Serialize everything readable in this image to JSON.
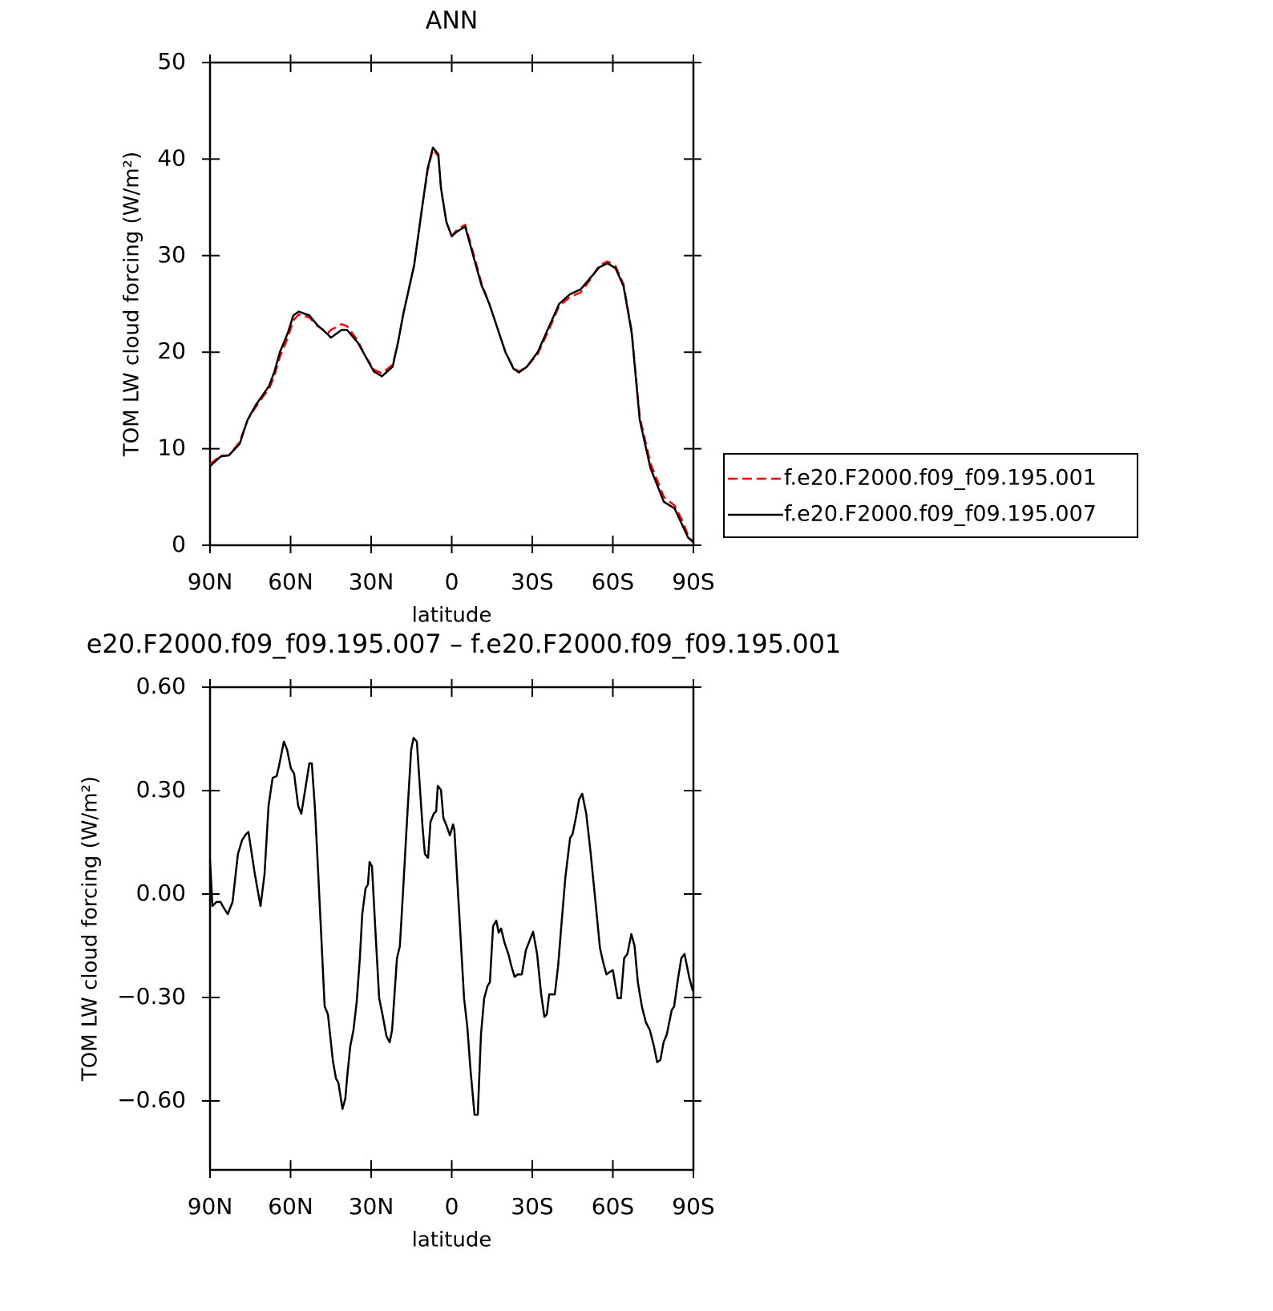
{
  "chart_data": [
    {
      "type": "line",
      "title": "ANN",
      "xlabel": "latitude",
      "ylabel": "TOM LW cloud forcing (W/m²)",
      "x": [
        90,
        86,
        83,
        79,
        76,
        73,
        70,
        68,
        66,
        64,
        61,
        59,
        57,
        53,
        50,
        46,
        45,
        41,
        39,
        35,
        32,
        29,
        26,
        22,
        20,
        18,
        14,
        11,
        9,
        7,
        5,
        4,
        2,
        0,
        -2,
        -5,
        -8,
        -11,
        -14,
        -17,
        -20,
        -23,
        -25,
        -28,
        -32,
        -36,
        -40,
        -44,
        -48,
        -51,
        -55,
        -58,
        -61,
        -64,
        -67,
        -70,
        -74,
        -79,
        -83,
        -86,
        -88,
        -90
      ],
      "series": [
        {
          "name": "f.e20.F2000.f09_f09.195.001",
          "color": "#ff0000",
          "linestyle": "dashed",
          "values": [
            8.4,
            9.3,
            9.3,
            10.7,
            13,
            14.3,
            15.5,
            16.2,
            17.6,
            19.5,
            21.5,
            23.3,
            23.9,
            23.6,
            22.7,
            22,
            22.3,
            22.9,
            22.7,
            21.2,
            19.5,
            18.2,
            17.8,
            18.7,
            21,
            24,
            29,
            35,
            38.8,
            41,
            40.3,
            37,
            33.5,
            32,
            32.7,
            33.2,
            30.3,
            27.2,
            25,
            22.5,
            20,
            18.4,
            18,
            18.5,
            19.8,
            22.2,
            24.8,
            25.7,
            26.2,
            27.3,
            29,
            29.4,
            28.9,
            27,
            22.2,
            13.3,
            8.5,
            5,
            4.1,
            2.5,
            1,
            0.3
          ]
        },
        {
          "name": "f.e20.F2000.f09_f09.195.007",
          "color": "#000000",
          "linestyle": "solid",
          "values": [
            8.2,
            9.2,
            9.3,
            10.5,
            13,
            14.5,
            15.7,
            16.5,
            18,
            20,
            22,
            23.8,
            24.2,
            23.8,
            22.8,
            21.8,
            21.5,
            22.3,
            22.3,
            21,
            19.5,
            18,
            17.5,
            18.5,
            21,
            24,
            29,
            35,
            39,
            41.2,
            40.5,
            37,
            33.5,
            32,
            32.5,
            33,
            30,
            27,
            25,
            22.5,
            20,
            18.3,
            17.9,
            18.5,
            20,
            22.5,
            25,
            26,
            26.5,
            27.5,
            28.8,
            29.2,
            28.7,
            26.8,
            22,
            13,
            8,
            4.5,
            3.8,
            2,
            0.8,
            0.3
          ]
        }
      ],
      "xlim": [
        90,
        -90
      ],
      "xticks": [
        {
          "value": 90,
          "label": "90N"
        },
        {
          "value": 60,
          "label": "60N"
        },
        {
          "value": 30,
          "label": "30N"
        },
        0,
        {
          "value": -30,
          "label": "30S"
        },
        {
          "value": -60,
          "label": "60S"
        },
        {
          "value": -90,
          "label": "90S"
        }
      ],
      "ylim": [
        0,
        50
      ],
      "yticks": [
        0,
        10,
        20,
        30,
        40,
        50
      ],
      "legend": "outside-right"
    },
    {
      "type": "line",
      "title": "e20.F2000.f09_f09.195.007 – f.e20.F2000.f09_f09.195.001",
      "xlabel": "latitude",
      "ylabel": "TOM LW cloud forcing (W/m²)",
      "x": [
        90,
        89.1,
        87.6,
        86.1,
        84.9,
        83.4,
        81.6,
        79.6,
        78.1,
        76.6,
        75.7,
        73.3,
        71.2,
        69.7,
        68.2,
        66.7,
        65.2,
        64.3,
        62.5,
        61.3,
        59.9,
        58.7,
        57.2,
        56.0,
        54.8,
        53.0,
        52.1,
        50.9,
        49.7,
        47.3,
        46.1,
        44.3,
        43.1,
        42.2,
        40.7,
        39.6,
        39.0,
        37.8,
        36.6,
        35.4,
        34.2,
        33.3,
        32.1,
        31.2,
        30.6,
        29.7,
        28.5,
        27.0,
        25.8,
        24.3,
        23.1,
        22.2,
        20.4,
        19.3,
        18.1,
        16.6,
        15.1,
        14.2,
        13.0,
        11.8,
        10.9,
        10.0,
        8.8,
        7.9,
        6.7,
        5.8,
        5.2,
        4.0,
        3.1,
        1.9,
        0.7,
        -0.5,
        -1.0,
        -2.8,
        -4.6,
        -5.8,
        -7.0,
        -8.5,
        -9.7,
        -10.9,
        -12.1,
        -13.3,
        -14.2,
        -15.4,
        -16.6,
        -17.5,
        -18.4,
        -19.6,
        -21.1,
        -22.2,
        -23.4,
        -24.6,
        -26.1,
        -27.6,
        -29.1,
        -30.3,
        -31.8,
        -33.3,
        -34.5,
        -35.4,
        -36.3,
        -38.4,
        -39.6,
        -40.8,
        -42.3,
        -44.1,
        -45.0,
        -46.5,
        -47.4,
        -48.6,
        -50.1,
        -51.6,
        -53.4,
        -55.2,
        -56.4,
        -57.6,
        -58.8,
        -60.0,
        -61.8,
        -63.0,
        -64.2,
        -65.4,
        -66.9,
        -68.1,
        -69.3,
        -70.8,
        -72.3,
        -73.8,
        -75.3,
        -76.5,
        -77.7,
        -78.9,
        -80.1,
        -81.9,
        -82.8,
        -84.3,
        -85.5,
        -86.7,
        -88.5,
        -89.7,
        -90
      ],
      "series": [
        {
          "color": "#000000",
          "linestyle": "solid",
          "values": [
            0.1,
            -0.035,
            -0.023,
            -0.023,
            -0.04,
            -0.058,
            -0.023,
            0.116,
            0.156,
            0.174,
            0.18,
            0.058,
            -0.035,
            0.058,
            0.256,
            0.337,
            0.342,
            0.372,
            0.442,
            0.419,
            0.365,
            0.349,
            0.256,
            0.233,
            0.291,
            0.379,
            0.379,
            0.244,
            0.058,
            -0.326,
            -0.349,
            -0.481,
            -0.535,
            -0.547,
            -0.623,
            -0.593,
            -0.535,
            -0.442,
            -0.395,
            -0.314,
            -0.186,
            -0.058,
            0.016,
            0.028,
            0.093,
            0.081,
            -0.093,
            -0.302,
            -0.349,
            -0.412,
            -0.43,
            -0.395,
            -0.186,
            -0.151,
            0.012,
            0.221,
            0.419,
            0.453,
            0.442,
            0.302,
            0.198,
            0.116,
            0.105,
            0.209,
            0.233,
            0.24,
            0.314,
            0.302,
            0.221,
            0.198,
            0.17,
            0.202,
            0.186,
            -0.058,
            -0.302,
            -0.384,
            -0.512,
            -0.64,
            -0.64,
            -0.407,
            -0.302,
            -0.267,
            -0.256,
            -0.093,
            -0.077,
            -0.112,
            -0.1,
            -0.14,
            -0.174,
            -0.209,
            -0.24,
            -0.233,
            -0.233,
            -0.163,
            -0.133,
            -0.109,
            -0.174,
            -0.291,
            -0.356,
            -0.349,
            -0.291,
            -0.291,
            -0.209,
            -0.093,
            0.047,
            0.163,
            0.174,
            0.233,
            0.274,
            0.291,
            0.233,
            0.128,
            -0.012,
            -0.156,
            -0.198,
            -0.233,
            -0.226,
            -0.221,
            -0.302,
            -0.302,
            -0.186,
            -0.174,
            -0.116,
            -0.151,
            -0.256,
            -0.326,
            -0.372,
            -0.395,
            -0.442,
            -0.488,
            -0.481,
            -0.43,
            -0.407,
            -0.337,
            -0.326,
            -0.244,
            -0.186,
            -0.174,
            -0.244,
            -0.279,
            -0.267
          ]
        }
      ],
      "xlim": [
        90,
        -90
      ],
      "xticks": [
        {
          "value": 90,
          "label": "90N"
        },
        {
          "value": 60,
          "label": "60N"
        },
        {
          "value": 30,
          "label": "30N"
        },
        0,
        {
          "value": -30,
          "label": "30S"
        },
        {
          "value": -60,
          "label": "60S"
        },
        {
          "value": -90,
          "label": "90S"
        }
      ],
      "ylim": [
        -0.8,
        0.6
      ],
      "yticks": [
        {
          "value": -0.6,
          "label": "−0.60"
        },
        {
          "value": -0.3,
          "label": "−0.30"
        },
        {
          "value": 0,
          "label": "0.00"
        },
        {
          "value": 0.3,
          "label": "0.30"
        },
        {
          "value": 0.6,
          "label": "0.60"
        }
      ]
    }
  ]
}
